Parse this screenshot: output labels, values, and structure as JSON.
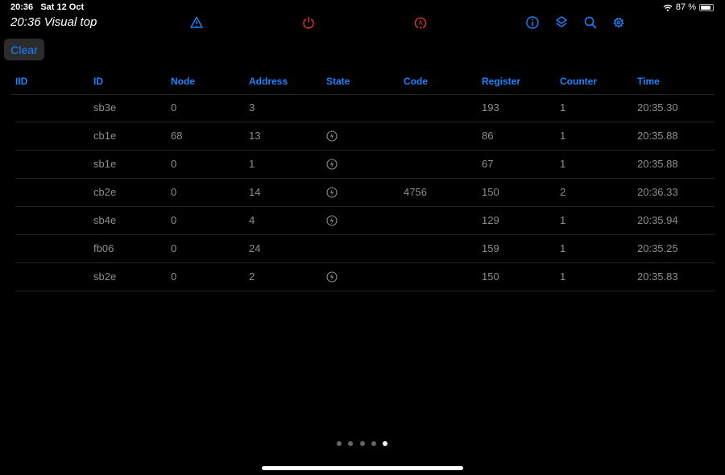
{
  "status_bar": {
    "time": "20:36",
    "date": "Sat 12 Oct",
    "battery": "87 %",
    "battery_level": 0.87
  },
  "toolbar": {
    "title": "20:36 Visual top",
    "icons": [
      "warning-icon",
      "power-icon",
      "auto-icon",
      "info-icon",
      "layers-icon",
      "search-icon",
      "gear-icon"
    ],
    "accent": "#1a84ff",
    "alert": "#e0342f"
  },
  "clear_label": "Clear",
  "table": {
    "columns": [
      "IID",
      "ID",
      "Node",
      "Address",
      "State",
      "Code",
      "Register",
      "Counter",
      "Time"
    ],
    "rows": [
      {
        "iid": "",
        "id": "sb3e",
        "node": "0",
        "address": "3",
        "state": "",
        "code": "",
        "register": "193",
        "counter": "1",
        "time": "20:35.30"
      },
      {
        "iid": "",
        "id": "cb1e",
        "node": "68",
        "address": "13",
        "state": "bolt-icon",
        "code": "",
        "register": "86",
        "counter": "1",
        "time": "20:35.88"
      },
      {
        "iid": "",
        "id": "sb1e",
        "node": "0",
        "address": "1",
        "state": "bolt-icon",
        "code": "",
        "register": "67",
        "counter": "1",
        "time": "20:35.88"
      },
      {
        "iid": "",
        "id": "cb2e",
        "node": "0",
        "address": "14",
        "state": "bolt-icon",
        "code": "4756",
        "register": "150",
        "counter": "2",
        "time": "20:36.33"
      },
      {
        "iid": "",
        "id": "sb4e",
        "node": "0",
        "address": "4",
        "state": "bolt-icon",
        "code": "",
        "register": "129",
        "counter": "1",
        "time": "20:35.94"
      },
      {
        "iid": "",
        "id": "fb06",
        "node": "0",
        "address": "24",
        "state": "",
        "code": "",
        "register": "159",
        "counter": "1",
        "time": "20:35.25"
      },
      {
        "iid": "",
        "id": "sb2e",
        "node": "0",
        "address": "2",
        "state": "bolt-icon",
        "code": "",
        "register": "150",
        "counter": "1",
        "time": "20:35.83"
      }
    ]
  },
  "pager": {
    "pages": 5,
    "current": 5
  }
}
